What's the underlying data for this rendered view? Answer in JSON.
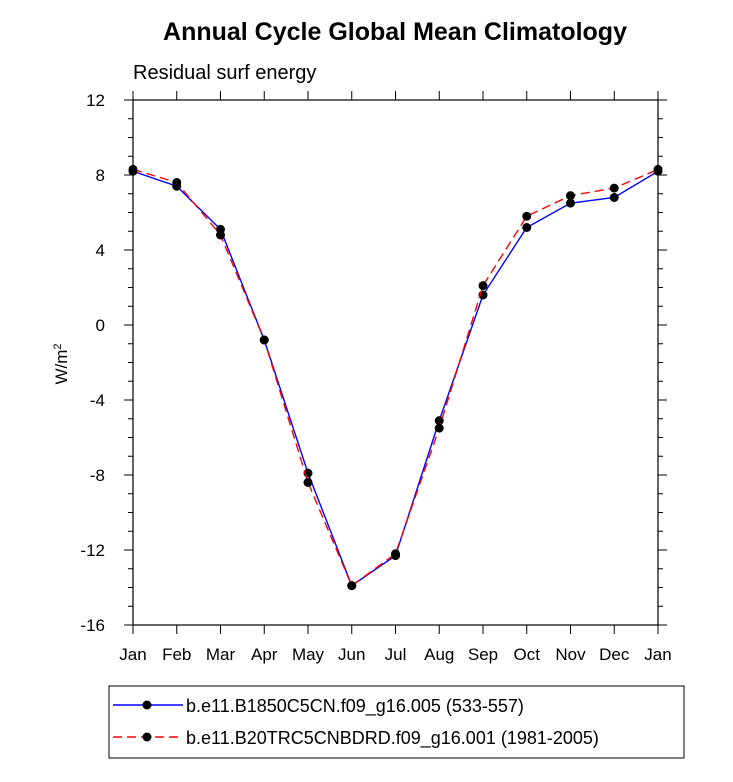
{
  "chart_data": {
    "type": "line",
    "title": "Annual Cycle Global Mean Climatology",
    "subtitle": "Residual surf energy",
    "ylabel_base": "W/m",
    "ylabel_sup": "2",
    "xlabel": "",
    "categories": [
      "Jan",
      "Feb",
      "Mar",
      "Apr",
      "May",
      "Jun",
      "Jul",
      "Aug",
      "Sep",
      "Oct",
      "Nov",
      "Dec",
      "Jan"
    ],
    "ylim": [
      -16,
      12
    ],
    "yticks": [
      "-16",
      "-12",
      "-8",
      "-4",
      "0",
      "4",
      "8",
      "12"
    ],
    "grid": false,
    "legend_position": "bottom",
    "series": [
      {
        "name": "b.e11.B1850C5CN.f09_g16.005 (533-557)",
        "color": "#0000ff",
        "dash": "solid",
        "marker": "circle",
        "values": [
          8.2,
          7.4,
          5.1,
          -0.8,
          -7.9,
          -13.9,
          -12.3,
          -5.1,
          1.6,
          5.2,
          6.5,
          6.8,
          8.2
        ]
      },
      {
        "name": "b.e11.B20TRC5CNBDRD.f09_g16.001 (1981-2005)",
        "color": "#ff0000",
        "dash": "dashed",
        "marker": "circle",
        "values": [
          8.3,
          7.6,
          4.8,
          -0.8,
          -8.4,
          -13.9,
          -12.2,
          -5.5,
          2.1,
          5.8,
          6.9,
          7.3,
          8.3
        ]
      }
    ]
  }
}
